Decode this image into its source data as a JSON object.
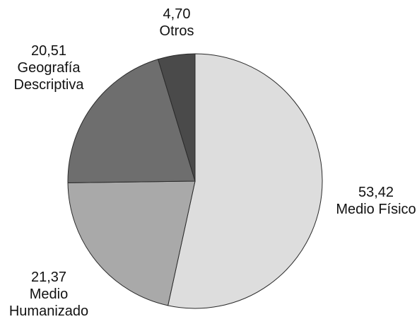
{
  "chart_data": {
    "type": "pie",
    "title": "",
    "start_angle_deg": 0,
    "direction": "clockwise",
    "slices": [
      {
        "value_label": "53,42",
        "label_lines": [
          "Medio Físico"
        ],
        "value": 53.42,
        "color": "#dddddd"
      },
      {
        "value_label": "21,37",
        "label_lines": [
          "Medio",
          "Humanizado"
        ],
        "value": 21.37,
        "color": "#a9a9a9"
      },
      {
        "value_label": "20,51",
        "label_lines": [
          "Geografía",
          "Descriptiva"
        ],
        "value": 20.51,
        "color": "#6e6e6e"
      },
      {
        "value_label": "4,70",
        "label_lines": [
          "Otros"
        ],
        "value": 4.7,
        "color": "#4a4a4a"
      }
    ]
  }
}
